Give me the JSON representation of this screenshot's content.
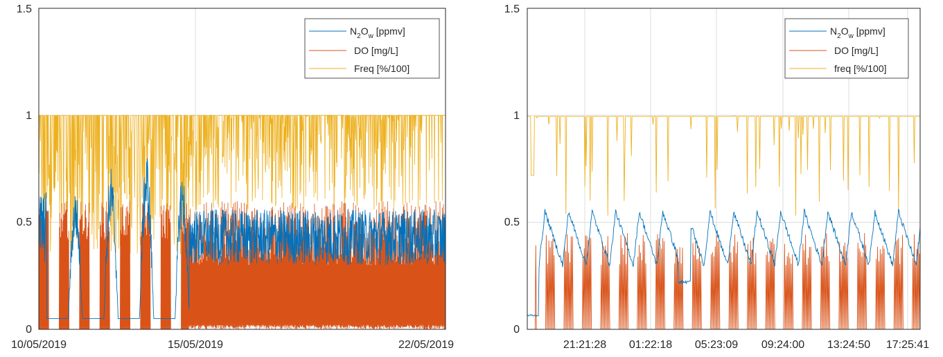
{
  "colors": {
    "n2o": "#0072BD",
    "do": "#D95319",
    "freq": "#EDB120",
    "grid": "#dcdcdc",
    "axis": "#262626"
  },
  "chart_data": [
    {
      "type": "line",
      "ylim": [
        0,
        1.5
      ],
      "yticks": [
        "0",
        "0.5",
        "1",
        "1.5"
      ],
      "xtick_labels": [
        "10/05/2019",
        "15/05/2019",
        "22/05/2019"
      ],
      "legend": {
        "placement": "top-right",
        "entries": [
          {
            "series": "n2o",
            "label_main": "N",
            "label_sub1": "2",
            "label_mid": "O",
            "label_sub2": "w",
            "label_tail": " [ppmv]"
          },
          {
            "series": "do",
            "label_main": "DO [mg/L]"
          },
          {
            "series": "freq",
            "label_main": "Freq  [%/100]"
          }
        ]
      },
      "grid": true,
      "series": [
        {
          "key": "freq",
          "description_levels": {
            "baseline": 1.0,
            "dips_min": 0.35
          }
        },
        {
          "key": "do",
          "typical_peak": 0.6,
          "max_peak": 0.79
        },
        {
          "key": "n2o",
          "early_level": 0.05,
          "peaks": [
            0.66,
            0.76,
            0.84,
            0.75
          ],
          "later_range": [
            0.3,
            0.56
          ]
        }
      ]
    },
    {
      "type": "line",
      "ylim": [
        0,
        1.5
      ],
      "yticks": [
        "0",
        "0.5",
        "1",
        "1.5"
      ],
      "xtick_labels": [
        "21:21:28",
        "01:22:18",
        "05:23:09",
        "09:24:00",
        "13:24:50",
        "17:25:41"
      ],
      "legend": {
        "placement": "top-right",
        "entries": [
          {
            "series": "n2o",
            "label_main": "N",
            "label_sub1": "2",
            "label_mid": "O",
            "label_sub2": "w",
            "label_tail": " [ppmv]"
          },
          {
            "series": "do",
            "label_main": "DO [mg/L]"
          },
          {
            "series": "freq",
            "label_main": "freq  [%/100]"
          }
        ]
      },
      "grid": true,
      "series": [
        {
          "key": "freq",
          "baseline": 1.0,
          "dips_min": 0.53
        },
        {
          "key": "do",
          "typical_peak": 0.45,
          "max_peak": 0.62
        },
        {
          "key": "n2o",
          "start_level": 0.06,
          "range": [
            0.21,
            0.58
          ]
        }
      ]
    }
  ]
}
